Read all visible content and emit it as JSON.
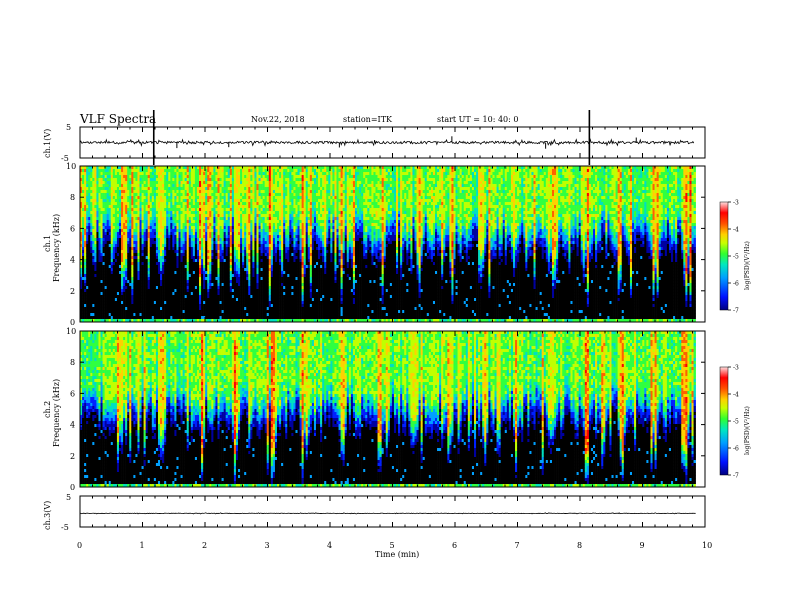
{
  "header": {
    "title": "VLF Spectra",
    "date": "Nov.22, 2018",
    "station": "station=ITK",
    "start": "start  UT  =   10: 40: 0"
  },
  "colors": {
    "axis": "#000000",
    "background_quiet": "#000000",
    "colormap": [
      "#000000",
      "#0000a0",
      "#0020ff",
      "#00a0ff",
      "#00e0c0",
      "#30ff40",
      "#c0ff00",
      "#ffd000",
      "#ff6000",
      "#ff0000",
      "#ffe8e8"
    ]
  },
  "chart_data": [
    {
      "type": "line",
      "name": "ch1-waveform",
      "ylabel": "ch.1(V)",
      "ylim": [
        -5,
        5
      ],
      "yticks": [
        "5",
        "-5"
      ],
      "xlim": [
        0,
        10
      ],
      "baseline_v": 0,
      "noise_v": 0.4,
      "spikes": [
        {
          "t": 1.18,
          "v": 5
        },
        {
          "t": 1.55,
          "v": -1.8
        },
        {
          "t": 2.38,
          "v": -1.5
        },
        {
          "t": 4.15,
          "v": -1.6
        },
        {
          "t": 5.95,
          "v": 2.0
        },
        {
          "t": 7.45,
          "v": -2.0
        },
        {
          "t": 8.15,
          "v": 5
        },
        {
          "t": 8.9,
          "v": 1.6
        }
      ]
    },
    {
      "type": "heatmap",
      "name": "ch1-spectrogram",
      "ylabel_channel": "ch.1",
      "ylabel": "Frequency  (kHz)",
      "ylim": [
        0,
        10
      ],
      "yticks": [
        "0",
        "2",
        "4",
        "6",
        "8",
        "10"
      ],
      "xlim": [
        0,
        9.85
      ],
      "colorbar": {
        "label": "log(PSD)(V²/Hz)",
        "ticks": [
          "-3",
          "-4",
          "-5",
          "-6",
          "-7"
        ],
        "range": [
          -7,
          -3
        ]
      },
      "quiet_floor_khz": 4.2,
      "strong_bursts_min": [
        0.72,
        1.28,
        1.92,
        2.52,
        3.05,
        3.56,
        4.18,
        4.85,
        5.42,
        5.96,
        6.42,
        6.95,
        7.58,
        8.12,
        8.62,
        9.18,
        9.72
      ]
    },
    {
      "type": "heatmap",
      "name": "ch2-spectrogram",
      "ylabel_channel": "ch.2",
      "ylabel": "Frequency  (kHz)",
      "ylim": [
        0,
        10
      ],
      "yticks": [
        "0",
        "2",
        "4",
        "6",
        "8",
        "10"
      ],
      "xlim": [
        0,
        9.85
      ],
      "colorbar": {
        "label": "log(PSD)(V²/Hz)",
        "ticks": [
          "-3",
          "-4",
          "-5",
          "-6",
          "-7"
        ],
        "range": [
          -7,
          -3
        ]
      },
      "quiet_floor_khz": 3.6,
      "strong_bursts_min": [
        0.65,
        1.3,
        1.95,
        2.48,
        3.1,
        3.62,
        4.2,
        4.8,
        5.38,
        5.92,
        6.48,
        6.98,
        7.55,
        8.1,
        8.66,
        9.2,
        9.7
      ]
    },
    {
      "type": "line",
      "name": "ch3-waveform",
      "ylabel": "ch.3(V)",
      "ylim": [
        -5,
        5
      ],
      "yticks": [
        "5",
        "-5"
      ],
      "xlim": [
        0,
        10
      ],
      "baseline_v": -0.6,
      "noise_v": 0.08,
      "xlabel": "Time  (min)",
      "xticks": [
        "0",
        "1",
        "2",
        "3",
        "4",
        "5",
        "6",
        "7",
        "8",
        "9",
        "10"
      ]
    }
  ]
}
